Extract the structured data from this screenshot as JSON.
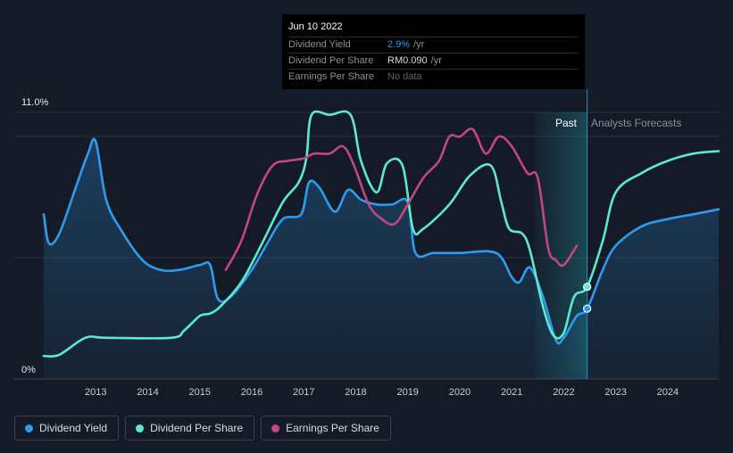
{
  "tooltip": {
    "date": "Jun 10 2022",
    "rows": [
      {
        "label": "Dividend Yield",
        "value": "2.9%",
        "unit": "/yr"
      },
      {
        "label": "Dividend Per Share",
        "value": "RM0.090",
        "unit": "/yr"
      },
      {
        "label": "Earnings Per Share",
        "value": "No data",
        "unit": ""
      }
    ]
  },
  "legend": [
    {
      "label": "Dividend Yield",
      "color": "#2d9cf0"
    },
    {
      "label": "Dividend Per Share",
      "color": "#5ee8cf"
    },
    {
      "label": "Earnings Per Share",
      "color": "#c2467f"
    }
  ],
  "chart_data": {
    "type": "line",
    "x_range": [
      2012.0,
      2024.98
    ],
    "y_range_pct": [
      0,
      11.0
    ],
    "y_tick_labels": [
      "11.0%",
      "0%"
    ],
    "x_ticks": [
      2013,
      2014,
      2015,
      2016,
      2017,
      2018,
      2019,
      2020,
      2021,
      2022,
      2023,
      2024
    ],
    "past_label": "Past",
    "forecast_label": "Analysts Forecasts",
    "forecast_region": [
      2021.45,
      2022.45
    ],
    "series": [
      {
        "name": "Dividend Yield",
        "color": "#2d9cf0",
        "unit": "%",
        "filled": true,
        "points": [
          [
            2012.0,
            6.8
          ],
          [
            2012.1,
            5.6
          ],
          [
            2012.3,
            6.0
          ],
          [
            2012.6,
            7.8
          ],
          [
            2012.85,
            9.3
          ],
          [
            2013.0,
            9.8
          ],
          [
            2013.2,
            7.4
          ],
          [
            2013.5,
            6.1
          ],
          [
            2013.9,
            4.9
          ],
          [
            2014.25,
            4.5
          ],
          [
            2014.6,
            4.5
          ],
          [
            2015.0,
            4.7
          ],
          [
            2015.2,
            4.7
          ],
          [
            2015.35,
            3.3
          ],
          [
            2015.6,
            3.4
          ],
          [
            2016.0,
            4.5
          ],
          [
            2016.3,
            5.6
          ],
          [
            2016.6,
            6.6
          ],
          [
            2016.95,
            6.8
          ],
          [
            2017.1,
            8.1
          ],
          [
            2017.3,
            7.9
          ],
          [
            2017.6,
            6.9
          ],
          [
            2017.85,
            7.8
          ],
          [
            2018.1,
            7.4
          ],
          [
            2018.4,
            7.2
          ],
          [
            2018.7,
            7.2
          ],
          [
            2019.0,
            7.3
          ],
          [
            2019.15,
            5.2
          ],
          [
            2019.5,
            5.2
          ],
          [
            2020.0,
            5.2
          ],
          [
            2020.7,
            5.2
          ],
          [
            2021.0,
            4.2
          ],
          [
            2021.15,
            4.0
          ],
          [
            2021.35,
            4.6
          ],
          [
            2021.6,
            3.4
          ],
          [
            2021.85,
            1.6
          ],
          [
            2022.0,
            1.7
          ],
          [
            2022.25,
            2.6
          ],
          [
            2022.45,
            2.9
          ],
          [
            2022.75,
            4.5
          ],
          [
            2023.0,
            5.5
          ],
          [
            2023.5,
            6.3
          ],
          [
            2024.0,
            6.6
          ],
          [
            2024.5,
            6.8
          ],
          [
            2024.98,
            7.0
          ]
        ]
      },
      {
        "name": "Dividend Per Share",
        "color": "#5ee8cf",
        "unit": "%",
        "filled": false,
        "points": [
          [
            2012.0,
            0.95
          ],
          [
            2012.3,
            1.0
          ],
          [
            2012.8,
            1.7
          ],
          [
            2013.2,
            1.7
          ],
          [
            2014.45,
            1.7
          ],
          [
            2014.7,
            2.0
          ],
          [
            2015.0,
            2.6
          ],
          [
            2015.2,
            2.7
          ],
          [
            2015.4,
            3.0
          ],
          [
            2015.8,
            4.0
          ],
          [
            2016.2,
            5.6
          ],
          [
            2016.6,
            7.3
          ],
          [
            2016.9,
            8.1
          ],
          [
            2017.05,
            9.1
          ],
          [
            2017.15,
            10.9
          ],
          [
            2017.5,
            10.9
          ],
          [
            2017.9,
            10.9
          ],
          [
            2018.1,
            9.0
          ],
          [
            2018.4,
            7.7
          ],
          [
            2018.6,
            8.9
          ],
          [
            2018.9,
            8.8
          ],
          [
            2019.1,
            6.2
          ],
          [
            2019.3,
            6.2
          ],
          [
            2019.8,
            7.2
          ],
          [
            2020.2,
            8.4
          ],
          [
            2020.6,
            8.8
          ],
          [
            2020.8,
            7.3
          ],
          [
            2020.95,
            6.2
          ],
          [
            2021.2,
            6.0
          ],
          [
            2021.35,
            5.3
          ],
          [
            2021.6,
            3.0
          ],
          [
            2021.8,
            1.8
          ],
          [
            2022.0,
            1.9
          ],
          [
            2022.2,
            3.4
          ],
          [
            2022.45,
            3.8
          ],
          [
            2022.75,
            5.7
          ],
          [
            2023.0,
            7.7
          ],
          [
            2023.5,
            8.5
          ],
          [
            2024.0,
            9.0
          ],
          [
            2024.5,
            9.3
          ],
          [
            2024.98,
            9.4
          ]
        ]
      },
      {
        "name": "Earnings Per Share",
        "color": "#c2467f",
        "unit": "%",
        "filled": false,
        "points": [
          [
            2015.5,
            4.5
          ],
          [
            2015.8,
            5.7
          ],
          [
            2016.1,
            7.6
          ],
          [
            2016.4,
            8.8
          ],
          [
            2016.7,
            9.0
          ],
          [
            2017.0,
            9.1
          ],
          [
            2017.2,
            9.3
          ],
          [
            2017.5,
            9.3
          ],
          [
            2017.75,
            9.6
          ],
          [
            2017.95,
            8.9
          ],
          [
            2018.25,
            7.2
          ],
          [
            2018.5,
            6.6
          ],
          [
            2018.75,
            6.4
          ],
          [
            2019.0,
            7.2
          ],
          [
            2019.3,
            8.3
          ],
          [
            2019.6,
            9.0
          ],
          [
            2019.8,
            10.0
          ],
          [
            2020.0,
            10.0
          ],
          [
            2020.25,
            10.3
          ],
          [
            2020.5,
            9.3
          ],
          [
            2020.75,
            10.0
          ],
          [
            2021.0,
            9.6
          ],
          [
            2021.3,
            8.5
          ],
          [
            2021.5,
            8.3
          ],
          [
            2021.7,
            5.4
          ],
          [
            2021.85,
            4.9
          ],
          [
            2022.0,
            4.7
          ],
          [
            2022.25,
            5.5
          ]
        ]
      }
    ],
    "markers": [
      {
        "series": "Dividend Per Share",
        "x": 2022.45,
        "y": 3.8
      },
      {
        "series": "Dividend Yield",
        "x": 2022.45,
        "y": 2.9
      }
    ]
  }
}
